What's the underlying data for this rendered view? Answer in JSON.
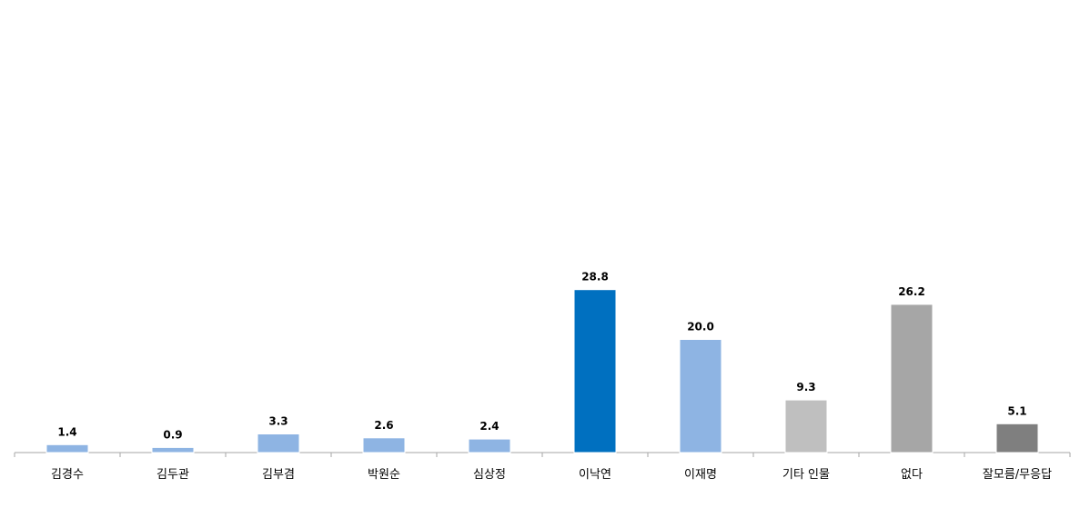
{
  "chart_data": {
    "type": "bar",
    "categories": [
      "김경수",
      "김두관",
      "김부겸",
      "박원순",
      "심상정",
      "이낙연",
      "이재명",
      "기타 인물",
      "없다",
      "잘모름/무응답"
    ],
    "values": [
      1.4,
      0.9,
      3.3,
      2.6,
      2.4,
      28.8,
      20.0,
      9.3,
      26.2,
      5.1
    ],
    "value_labels": [
      "1.4",
      "0.9",
      "3.3",
      "2.6",
      "2.4",
      "28.8",
      "20.0",
      "9.3",
      "26.2",
      "5.1"
    ],
    "bar_colors": [
      "#8EB4E3",
      "#8EB4E3",
      "#8EB4E3",
      "#8EB4E3",
      "#8EB4E3",
      "#0070C0",
      "#8EB4E3",
      "#BFBFBF",
      "#A6A6A6",
      "#7F7F7F"
    ],
    "ylim": [
      0,
      80
    ],
    "grid": false,
    "legend": "none",
    "title": "",
    "xlabel": "",
    "ylabel": ""
  }
}
